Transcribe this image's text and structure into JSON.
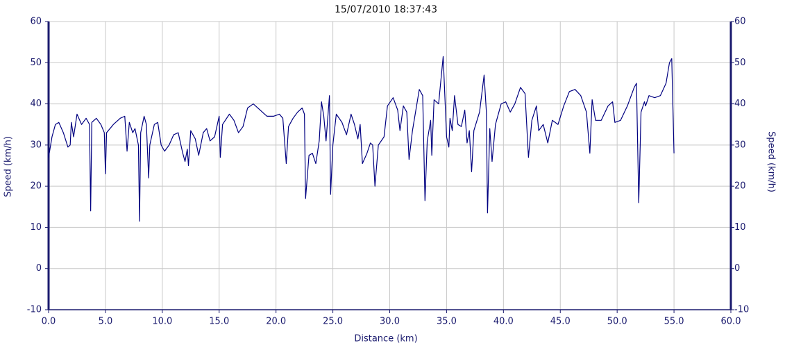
{
  "chart_data": {
    "type": "line",
    "title": "15/07/2010 18:37:43",
    "x_label": "Distance (km)",
    "y_label": "Speed (km/h)",
    "y2_label": "Speed (km/h)",
    "color": "#000080",
    "grid": true,
    "xlim": [
      0,
      60
    ],
    "xticks": [
      {
        "value": 0,
        "label": "0.0"
      },
      {
        "value": 5,
        "label": "5.0"
      },
      {
        "value": 10,
        "label": "10.0"
      },
      {
        "value": 15,
        "label": "15.0"
      },
      {
        "value": 20,
        "label": "20.0"
      },
      {
        "value": 25,
        "label": "25.0"
      },
      {
        "value": 30,
        "label": "30.0"
      },
      {
        "value": 35,
        "label": "35.0"
      },
      {
        "value": 40,
        "label": "40.0"
      },
      {
        "value": 45,
        "label": "45.0"
      },
      {
        "value": 50,
        "label": "50.0"
      },
      {
        "value": 55,
        "label": "55.0"
      },
      {
        "value": 60,
        "label": "60.0"
      }
    ],
    "ylim": [
      -10,
      60
    ],
    "yticks": [
      -10,
      0,
      10,
      20,
      30,
      40,
      50,
      60
    ],
    "y2lim": [
      -10,
      60
    ],
    "y2ticks": [
      -10,
      0,
      10,
      20,
      30,
      40,
      50,
      60
    ],
    "x": [
      0.0,
      0.3,
      0.6,
      0.9,
      1.3,
      1.7,
      1.9,
      2.0,
      2.2,
      2.5,
      2.9,
      3.3,
      3.6,
      3.7,
      3.8,
      4.2,
      4.6,
      4.9,
      5.0,
      5.1,
      5.7,
      6.3,
      6.7,
      6.9,
      7.1,
      7.4,
      7.6,
      7.9,
      8.0,
      8.1,
      8.4,
      8.6,
      8.8,
      8.9,
      9.3,
      9.6,
      9.9,
      10.2,
      10.6,
      11.0,
      11.4,
      11.8,
      12.0,
      12.2,
      12.3,
      12.5,
      12.9,
      13.2,
      13.6,
      13.9,
      14.2,
      14.6,
      15.0,
      15.1,
      15.3,
      15.9,
      16.3,
      16.7,
      17.1,
      17.5,
      18.0,
      18.6,
      19.2,
      19.8,
      20.3,
      20.6,
      20.9,
      21.1,
      21.5,
      21.9,
      22.3,
      22.5,
      22.6,
      22.9,
      23.2,
      23.5,
      23.8,
      24.0,
      24.2,
      24.4,
      24.7,
      24.8,
      25.0,
      25.3,
      25.8,
      26.2,
      26.6,
      26.9,
      27.2,
      27.4,
      27.6,
      28.0,
      28.3,
      28.5,
      28.7,
      29.0,
      29.5,
      29.8,
      30.3,
      30.7,
      30.9,
      31.2,
      31.5,
      31.7,
      32.0,
      32.3,
      32.6,
      32.9,
      33.1,
      33.3,
      33.6,
      33.7,
      33.9,
      34.3,
      34.7,
      35.0,
      35.2,
      35.3,
      35.5,
      35.7,
      36.0,
      36.3,
      36.6,
      36.8,
      37.0,
      37.2,
      37.4,
      37.9,
      38.3,
      38.5,
      38.6,
      38.8,
      39.0,
      39.3,
      39.8,
      40.2,
      40.6,
      41.0,
      41.5,
      41.9,
      42.2,
      42.5,
      42.9,
      43.1,
      43.5,
      43.9,
      44.3,
      44.8,
      45.3,
      45.8,
      46.3,
      46.8,
      47.3,
      47.6,
      47.8,
      48.1,
      48.6,
      49.2,
      49.6,
      49.8,
      50.3,
      50.9,
      51.5,
      51.7,
      51.9,
      52.1,
      52.4,
      52.5,
      52.8,
      53.3,
      53.8,
      54.3,
      54.6,
      54.8,
      55.0
    ],
    "values": [
      27,
      32,
      35,
      35.5,
      33,
      29.5,
      30,
      35.5,
      32,
      37.5,
      35,
      36.5,
      35,
      14,
      35.5,
      36.5,
      35,
      33,
      23,
      33,
      35,
      36.5,
      37,
      28.5,
      35.5,
      33,
      34,
      30,
      11.5,
      33,
      37,
      35,
      22,
      30,
      35,
      35.5,
      30,
      28.5,
      30,
      32.5,
      33,
      28,
      26,
      29,
      25,
      33.5,
      31.5,
      27.5,
      33,
      34,
      31,
      32,
      37,
      27,
      35,
      37.5,
      36,
      33,
      34.5,
      39,
      40,
      38.5,
      37,
      37,
      37.5,
      36.5,
      25.5,
      34.5,
      36.5,
      38,
      39,
      37.5,
      17,
      27.5,
      28,
      25.5,
      31,
      40.5,
      37,
      31,
      42,
      18,
      30,
      37.5,
      35.5,
      32.5,
      37.5,
      35,
      31.5,
      35,
      25.5,
      28,
      30.5,
      30,
      20,
      30,
      32,
      39.5,
      41.5,
      38.5,
      33.5,
      39.5,
      38,
      26.5,
      33.5,
      38.5,
      43.5,
      42,
      16.5,
      31,
      36,
      27.5,
      41,
      40,
      51.5,
      32,
      29.5,
      36.5,
      33.5,
      42,
      35,
      34.5,
      38.5,
      30.5,
      33.5,
      23.5,
      33.5,
      38,
      47,
      38,
      13.5,
      34,
      26,
      35,
      40,
      40.5,
      38,
      40,
      44,
      42.5,
      27,
      36,
      39.5,
      33.5,
      35,
      30.5,
      36,
      35,
      39.5,
      43,
      43.5,
      42,
      38,
      28,
      41,
      36,
      36,
      39.5,
      40.5,
      35.5,
      36,
      39.5,
      44,
      45,
      16,
      38,
      40.5,
      39.5,
      42,
      41.5,
      42,
      45,
      50,
      51,
      28
    ]
  }
}
